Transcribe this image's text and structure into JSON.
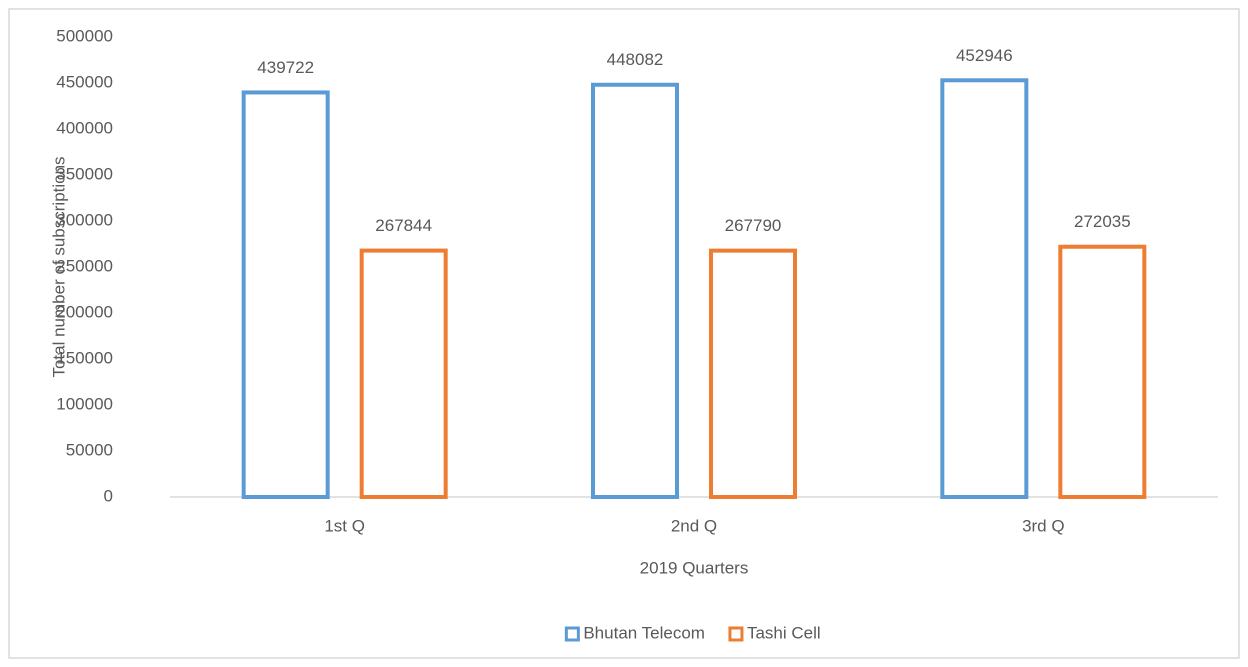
{
  "chart_data": {
    "type": "bar",
    "categories": [
      "1st Q",
      "2nd Q",
      "3rd Q"
    ],
    "series": [
      {
        "name": "Bhutan Telecom",
        "color": "#5b9bd5",
        "values": [
          439722,
          448082,
          452946
        ]
      },
      {
        "name": "Tashi Cell",
        "color": "#ed7d31",
        "values": [
          267844,
          267790,
          272035
        ]
      }
    ],
    "x_label": "2019 Quarters",
    "y_label": "Total number of subscriptions",
    "ylim": [
      0,
      500000
    ],
    "yticks": [
      0,
      50000,
      100000,
      150000,
      200000,
      250000,
      300000,
      350000,
      400000,
      450000,
      500000
    ],
    "legend": "bottom",
    "grid": false
  }
}
